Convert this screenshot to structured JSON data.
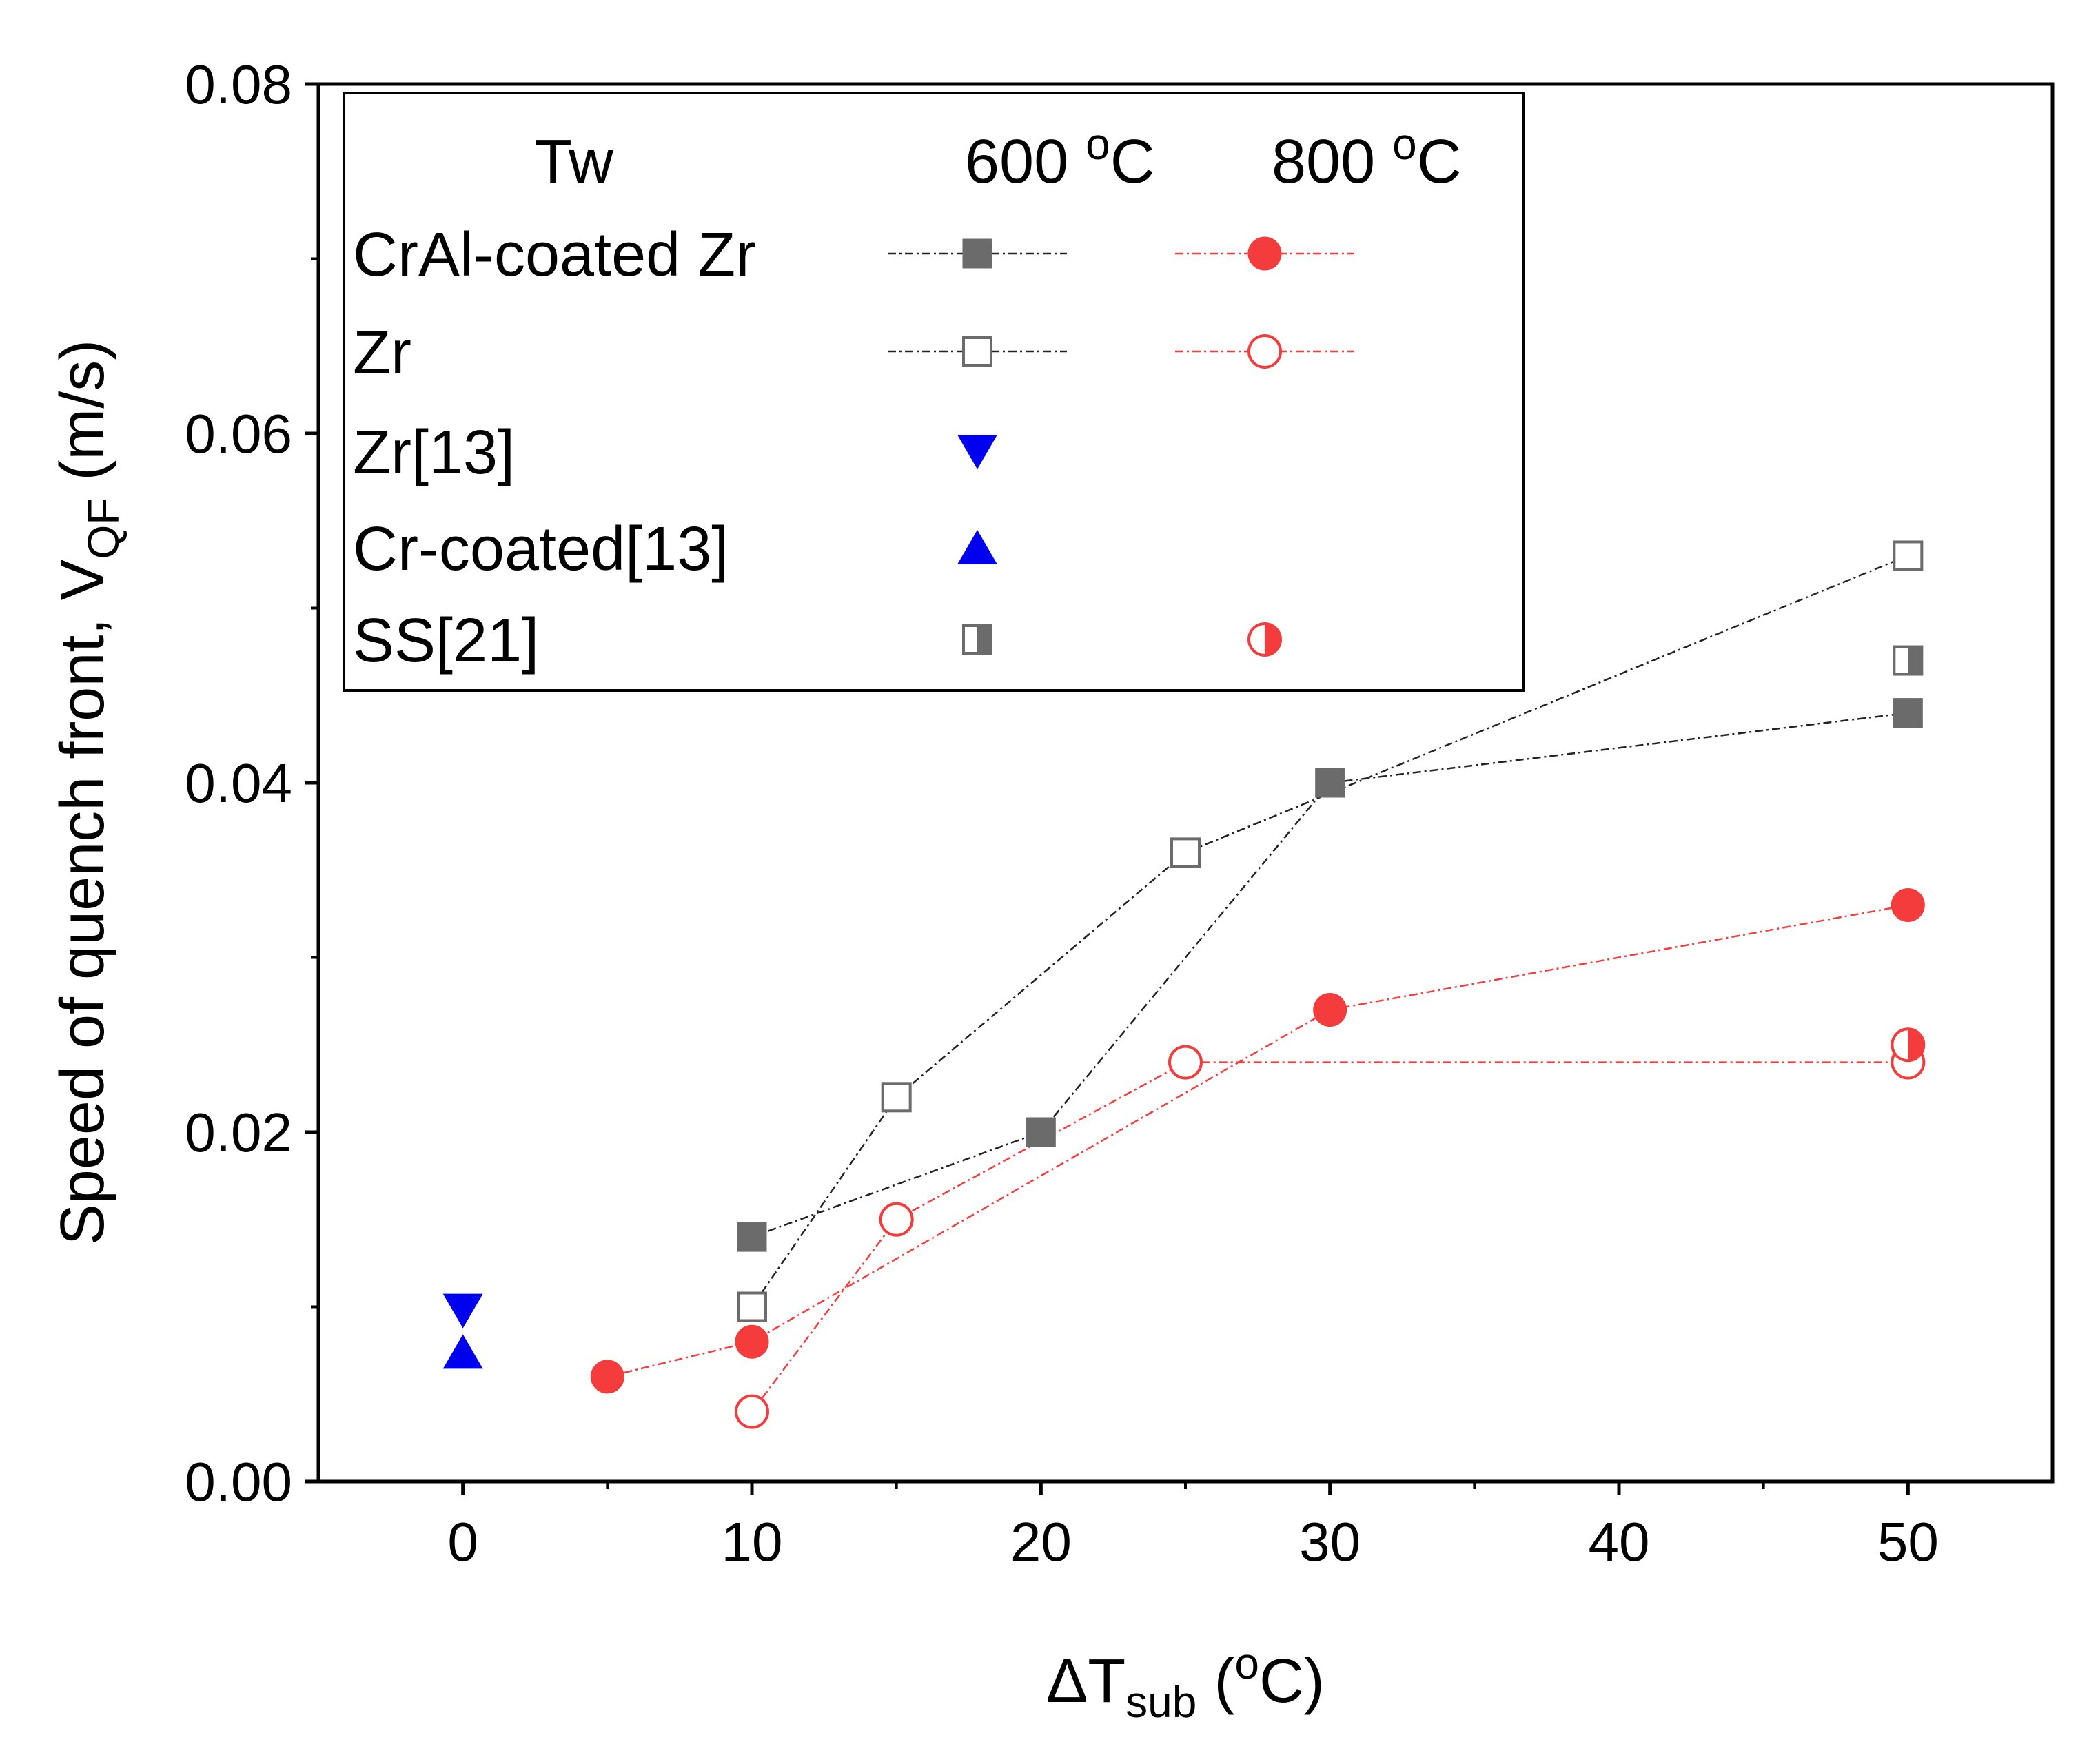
{
  "chart_data": {
    "type": "scatter",
    "title": "",
    "xlabel": {
      "prefix": "ΔT",
      "sub": "sub",
      "suffix": " (",
      "sup": "o",
      "end": "C)"
    },
    "ylabel": {
      "prefix": "Speed of quench front,  V",
      "sub": "QF",
      "suffix": " (m/s)"
    },
    "xlim": [
      -5,
      55
    ],
    "ylim": [
      0,
      0.08
    ],
    "xticks": [
      0,
      10,
      20,
      30,
      40,
      50
    ],
    "xtick_labels": [
      "0",
      "10",
      "20",
      "30",
      "40",
      "50"
    ],
    "yticks": [
      0,
      0.02,
      0.04,
      0.06,
      0.08
    ],
    "ytick_labels": [
      "0.00",
      "0.02",
      "0.04",
      "0.06",
      "0.08"
    ],
    "grid": false,
    "legend": {
      "position": "top-left",
      "header_label": "Tw",
      "col1_label": {
        "num": "600 ",
        "sup": "o",
        "unit": "C"
      },
      "col2_label": {
        "num": "800 ",
        "sup": "o",
        "unit": "C"
      }
    },
    "colors": {
      "gray": "#6b6b6b",
      "red": "#f53c3c",
      "blue": "#0000ee"
    },
    "series": [
      {
        "id": "crai-600",
        "name": "CrAl-coated Zr",
        "temp": "600 °C",
        "marker": "square",
        "fill": "solid",
        "color": "#6b6b6b",
        "line": true,
        "points": [
          [
            10,
            0.014
          ],
          [
            20,
            0.02
          ],
          [
            30,
            0.04
          ],
          [
            50,
            0.044
          ]
        ]
      },
      {
        "id": "crai-800",
        "name": "CrAl-coated Zr",
        "temp": "800 °C",
        "marker": "circle",
        "fill": "solid",
        "color": "#f53c3c",
        "line": true,
        "points": [
          [
            5,
            0.006
          ],
          [
            10,
            0.008
          ],
          [
            30,
            0.027
          ],
          [
            50,
            0.033
          ]
        ]
      },
      {
        "id": "zr-600",
        "name": "Zr",
        "temp": "600 °C",
        "marker": "square",
        "fill": "open",
        "color": "#6b6b6b",
        "line": true,
        "points": [
          [
            10,
            0.01
          ],
          [
            15,
            0.022
          ],
          [
            25,
            0.036
          ],
          [
            50,
            0.053
          ]
        ]
      },
      {
        "id": "zr-800",
        "name": "Zr",
        "temp": "800 °C",
        "marker": "circle",
        "fill": "open",
        "color": "#f53c3c",
        "line": true,
        "points": [
          [
            10,
            0.004
          ],
          [
            15,
            0.015
          ],
          [
            25,
            0.024
          ],
          [
            50,
            0.024
          ]
        ]
      },
      {
        "id": "zr13",
        "name": "Zr[13]",
        "temp": "600 °C",
        "marker": "triangle-down",
        "fill": "solid",
        "color": "#0000ee",
        "line": false,
        "points": [
          [
            0,
            0.0098
          ]
        ]
      },
      {
        "id": "cr13",
        "name": "Cr-coated[13]",
        "temp": "600 °C",
        "marker": "triangle-up",
        "fill": "solid",
        "color": "#0000ee",
        "line": false,
        "points": [
          [
            0,
            0.0074
          ]
        ]
      },
      {
        "id": "ss21-600",
        "name": "SS[21]",
        "temp": "600 °C",
        "marker": "square",
        "fill": "half",
        "color": "#6b6b6b",
        "line": false,
        "points": [
          [
            50,
            0.047
          ]
        ]
      },
      {
        "id": "ss21-800",
        "name": "SS[21]",
        "temp": "800 °C",
        "marker": "circle",
        "fill": "half",
        "color": "#f53c3c",
        "line": false,
        "points": [
          [
            50,
            0.025
          ]
        ]
      }
    ],
    "legend_rows": [
      {
        "label": "CrAl-coated Zr",
        "col1": "crai-600",
        "col2": "crai-800"
      },
      {
        "label": "Zr",
        "col1": "zr-600",
        "col2": "zr-800"
      },
      {
        "label": "Zr[13]",
        "col1": "zr13",
        "col2": null
      },
      {
        "label": "Cr-coated[13]",
        "col1": "cr13",
        "col2": null
      },
      {
        "label": "SS[21]",
        "col1": "ss21-600",
        "col2": "ss21-800"
      }
    ]
  }
}
